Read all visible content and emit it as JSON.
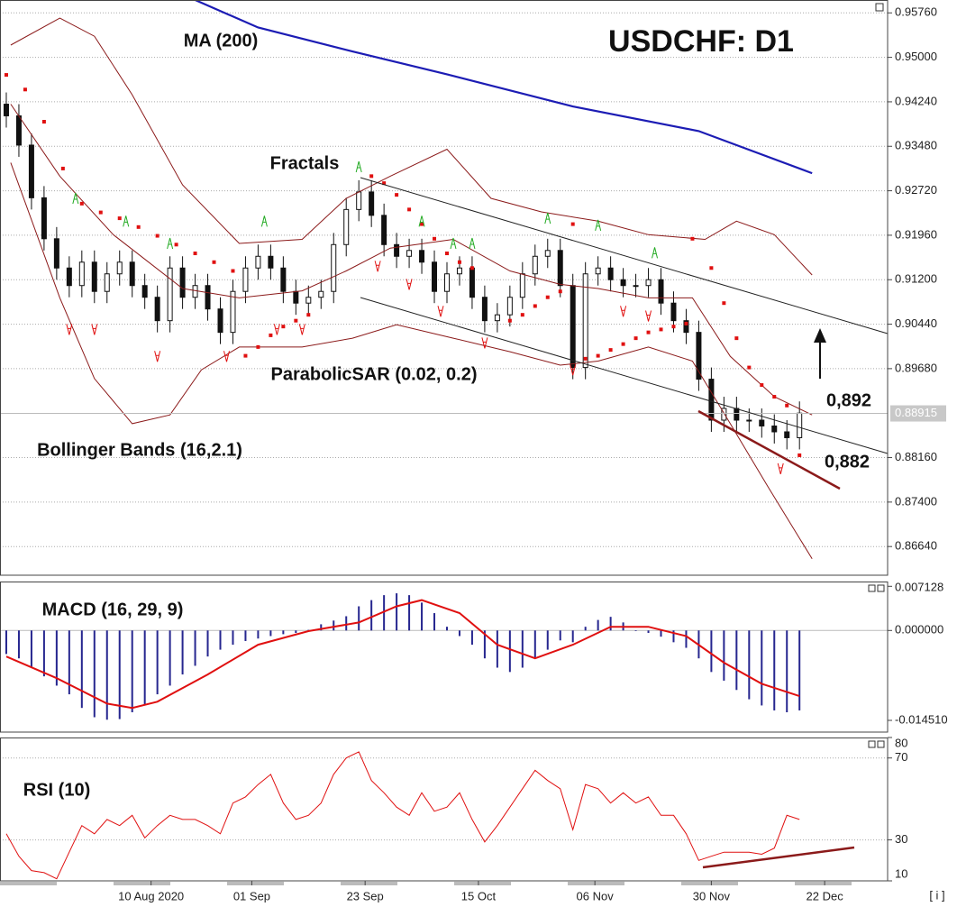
{
  "chart_data": [
    {
      "type": "candlestick",
      "title": "USDCHF: D1",
      "x": [
        0,
        2,
        4,
        6,
        8,
        10,
        12,
        14,
        16,
        18,
        20,
        22,
        24,
        26,
        28,
        30,
        32,
        34,
        36,
        38,
        40,
        42,
        44,
        46,
        48,
        50,
        52,
        54,
        56,
        58,
        60,
        62,
        64,
        66,
        68,
        70,
        72,
        74,
        76,
        78,
        80,
        82,
        84,
        86,
        88,
        90,
        92,
        94,
        96,
        98,
        100,
        102,
        104,
        106,
        108,
        110,
        112,
        114,
        116,
        118,
        120,
        122,
        124,
        126
      ],
      "open": [
        0.942,
        0.94,
        0.935,
        0.926,
        0.919,
        0.914,
        0.911,
        0.915,
        0.91,
        0.913,
        0.915,
        0.911,
        0.909,
        0.905,
        0.914,
        0.909,
        0.911,
        0.907,
        0.903,
        0.91,
        0.914,
        0.916,
        0.914,
        0.91,
        0.908,
        0.909,
        0.91,
        0.918,
        0.924,
        0.927,
        0.923,
        0.918,
        0.916,
        0.917,
        0.915,
        0.91,
        0.913,
        0.914,
        0.909,
        0.905,
        0.906,
        0.909,
        0.913,
        0.916,
        0.917,
        0.911,
        0.897,
        0.913,
        0.914,
        0.912,
        0.911,
        0.911,
        0.912,
        0.908,
        0.905,
        0.903,
        0.895,
        0.888,
        0.89,
        0.888,
        0.888,
        0.887,
        0.886,
        0.885
      ],
      "high": [
        0.944,
        0.942,
        0.937,
        0.928,
        0.921,
        0.916,
        0.917,
        0.917,
        0.915,
        0.917,
        0.917,
        0.913,
        0.911,
        0.916,
        0.916,
        0.913,
        0.913,
        0.909,
        0.912,
        0.916,
        0.918,
        0.918,
        0.916,
        0.912,
        0.911,
        0.912,
        0.92,
        0.926,
        0.929,
        0.929,
        0.925,
        0.92,
        0.919,
        0.919,
        0.917,
        0.915,
        0.916,
        0.916,
        0.911,
        0.908,
        0.911,
        0.915,
        0.918,
        0.919,
        0.919,
        0.913,
        0.915,
        0.916,
        0.916,
        0.914,
        0.913,
        0.914,
        0.914,
        0.91,
        0.907,
        0.905,
        0.897,
        0.892,
        0.892,
        0.89,
        0.89,
        0.889,
        0.888,
        0.8912
      ],
      "low": [
        0.938,
        0.933,
        0.924,
        0.917,
        0.912,
        0.909,
        0.909,
        0.908,
        0.908,
        0.911,
        0.909,
        0.907,
        0.903,
        0.903,
        0.907,
        0.907,
        0.905,
        0.901,
        0.901,
        0.908,
        0.912,
        0.912,
        0.908,
        0.906,
        0.906,
        0.907,
        0.908,
        0.916,
        0.922,
        0.921,
        0.916,
        0.914,
        0.914,
        0.913,
        0.908,
        0.908,
        0.911,
        0.907,
        0.903,
        0.903,
        0.904,
        0.907,
        0.911,
        0.914,
        0.909,
        0.895,
        0.895,
        0.911,
        0.91,
        0.909,
        0.909,
        0.909,
        0.906,
        0.903,
        0.901,
        0.893,
        0.886,
        0.886,
        0.886,
        0.886,
        0.885,
        0.884,
        0.883,
        0.883
      ],
      "close": [
        0.94,
        0.935,
        0.926,
        0.919,
        0.914,
        0.911,
        0.915,
        0.91,
        0.913,
        0.915,
        0.911,
        0.909,
        0.905,
        0.914,
        0.909,
        0.911,
        0.907,
        0.903,
        0.91,
        0.914,
        0.916,
        0.914,
        0.91,
        0.908,
        0.909,
        0.91,
        0.918,
        0.924,
        0.927,
        0.923,
        0.918,
        0.916,
        0.917,
        0.915,
        0.91,
        0.913,
        0.914,
        0.909,
        0.905,
        0.906,
        0.909,
        0.913,
        0.916,
        0.917,
        0.911,
        0.897,
        0.913,
        0.914,
        0.912,
        0.911,
        0.911,
        0.912,
        0.908,
        0.905,
        0.903,
        0.895,
        0.888,
        0.89,
        0.888,
        0.888,
        0.887,
        0.886,
        0.885,
        0.8892
      ],
      "series": [
        {
          "color": "#1c1cb4",
          "x": [
            30,
            40,
            55,
            70,
            90,
            110,
            128
          ],
          "values": [
            0.9598,
            0.9551,
            0.951,
            0.9471,
            0.9416,
            0.9374,
            0.9302
          ]
        },
        {
          "color": "#8b1a1a",
          "x": [
            0.7,
            8.5,
            14,
            20,
            28,
            37,
            47,
            54,
            61,
            70,
            77,
            85,
            94,
            102,
            111,
            116,
            122,
            128
          ],
          "values": [
            0.9521,
            0.9567,
            0.9536,
            0.9436,
            0.9282,
            0.9182,
            0.9189,
            0.9259,
            0.9297,
            0.9343,
            0.9259,
            0.9236,
            0.922,
            0.9197,
            0.9189,
            0.922,
            0.9197,
            0.9128
          ]
        },
        {
          "color": "#8b1a1a",
          "x": [
            0.7,
            8.5,
            17,
            28,
            37,
            47,
            54,
            61,
            71,
            80,
            88,
            94,
            102,
            109,
            115,
            122,
            128
          ],
          "values": [
            0.942,
            0.9297,
            0.9197,
            0.9105,
            0.9089,
            0.9101,
            0.9135,
            0.9174,
            0.9189,
            0.9135,
            0.9112,
            0.9105,
            0.9089,
            0.9089,
            0.8989,
            0.892,
            0.8889
          ]
        },
        {
          "color": "#8b1a1a",
          "x": [
            0.7,
            8.5,
            14,
            20,
            26,
            31,
            37,
            47,
            55,
            62,
            71,
            80,
            88,
            94,
            102,
            109,
            115,
            121,
            128
          ],
          "values": [
            0.932,
            0.9089,
            0.8951,
            0.8874,
            0.8889,
            0.8966,
            0.9005,
            0.9005,
            0.902,
            0.9043,
            0.902,
            0.8997,
            0.8974,
            0.8981,
            0.9005,
            0.8981,
            0.8874,
            0.8766,
            0.8643
          ]
        }
      ],
      "sar": {
        "color": "#e01010",
        "x": [
          0,
          3,
          6,
          9,
          12,
          15,
          18,
          21,
          24,
          27,
          30,
          33,
          36,
          38,
          40,
          42,
          44,
          46,
          48,
          58,
          60,
          62,
          64,
          66,
          68,
          70,
          72,
          74,
          80,
          82,
          84,
          86,
          88,
          90,
          92,
          94,
          96,
          98,
          100,
          102,
          104,
          106,
          108,
          109,
          112,
          114,
          116,
          118,
          120,
          122,
          124,
          126
        ],
        "values": [
          0.947,
          0.9445,
          0.939,
          0.931,
          0.925,
          0.9235,
          0.9225,
          0.921,
          0.9195,
          0.918,
          0.9165,
          0.915,
          0.9135,
          0.899,
          0.9005,
          0.9025,
          0.904,
          0.905,
          0.906,
          0.9297,
          0.9285,
          0.9265,
          0.924,
          0.9215,
          0.919,
          0.9165,
          0.915,
          0.914,
          0.905,
          0.906,
          0.9075,
          0.909,
          0.91,
          0.9215,
          0.8985,
          0.899,
          0.9,
          0.901,
          0.902,
          0.903,
          0.9035,
          0.904,
          0.9045,
          0.919,
          0.914,
          0.908,
          0.902,
          0.897,
          0.894,
          0.892,
          0.8905,
          0.882
        ]
      },
      "fractals_up": {
        "color": "#22aa22",
        "x": [
          11,
          19,
          26,
          41,
          56,
          66,
          71,
          74,
          86,
          94,
          103
        ],
        "values": [
          0.9259,
          0.922,
          0.9182,
          0.922,
          0.9313,
          0.922,
          0.9182,
          0.9182,
          0.9225,
          0.9213,
          0.9166
        ]
      },
      "fractals_down": {
        "color": "#e01010",
        "x": [
          10,
          14,
          24,
          35,
          43,
          47,
          59,
          64,
          69,
          76,
          90,
          98,
          102,
          123
        ],
        "values": [
          0.9035,
          0.9035,
          0.8989,
          0.8989,
          0.9035,
          0.9035,
          0.9143,
          0.9112,
          0.9066,
          0.9012,
          0.8966,
          0.9066,
          0.9058,
          0.8797
        ]
      },
      "last_price": 0.88915,
      "annotations": [
        "MA (200)",
        "Fractals",
        "ParabolicSAR (0.02, 0.2)",
        "Bollinger Bands (16,2.1)",
        "0,892",
        "0,882"
      ],
      "xlim": [
        -1,
        140
      ],
      "ylim": [
        0.8615,
        0.9598
      ],
      "xticks": [
        {
          "value": 23,
          "label": "10 Aug 2020"
        },
        {
          "value": 39,
          "label": "01 Sep"
        },
        {
          "value": 57,
          "label": "23 Sep"
        },
        {
          "value": 75,
          "label": "15 Oct"
        },
        {
          "value": 93.5,
          "label": "06 Nov"
        },
        {
          "value": 112,
          "label": "30 Nov"
        },
        {
          "value": 130,
          "label": "22 Dec"
        }
      ],
      "yticks": [
        {
          "value": 0.9576,
          "label": "0.95760"
        },
        {
          "value": 0.95,
          "label": "0.95000"
        },
        {
          "value": 0.9424,
          "label": "0.94240"
        },
        {
          "value": 0.9348,
          "label": "0.93480"
        },
        {
          "value": 0.9272,
          "label": "0.92720"
        },
        {
          "value": 0.9196,
          "label": "0.91960"
        },
        {
          "value": 0.912,
          "label": "0.91200"
        },
        {
          "value": 0.9044,
          "label": "0.90440"
        },
        {
          "value": 0.8968,
          "label": "0.89680"
        },
        {
          "value": 0.8816,
          "label": "0.88160"
        },
        {
          "value": 0.874,
          "label": "0.87400"
        },
        {
          "value": 0.8664,
          "label": "0.86640"
        }
      ],
      "grid": true
    },
    {
      "type": "bar",
      "title": "MACD (16, 29, 9)",
      "color": "#26268f",
      "x": [
        0,
        2,
        4,
        6,
        8,
        10,
        12,
        14,
        16,
        18,
        20,
        22,
        24,
        26,
        28,
        30,
        32,
        34,
        36,
        38,
        40,
        42,
        44,
        46,
        48,
        50,
        52,
        54,
        56,
        58,
        60,
        62,
        64,
        66,
        68,
        70,
        72,
        74,
        76,
        78,
        80,
        82,
        84,
        86,
        88,
        90,
        92,
        94,
        96,
        98,
        100,
        102,
        104,
        106,
        108,
        110,
        112,
        114,
        116,
        118,
        120,
        122,
        124,
        126
      ],
      "values": [
        -0.0038,
        -0.0045,
        -0.006,
        -0.0074,
        -0.0089,
        -0.0103,
        -0.0125,
        -0.014,
        -0.0144,
        -0.0143,
        -0.0132,
        -0.0121,
        -0.0103,
        -0.0089,
        -0.0071,
        -0.0057,
        -0.0042,
        -0.0031,
        -0.0023,
        -0.0017,
        -0.0013,
        -0.0009,
        -0.0006,
        -0.0004,
        0.0001,
        0.001,
        0.0016,
        0.0023,
        0.0039,
        0.0049,
        0.0057,
        0.006,
        0.0057,
        0.0045,
        0.0028,
        0.0006,
        -0.0009,
        -0.0023,
        -0.0045,
        -0.006,
        -0.0067,
        -0.006,
        -0.0045,
        -0.0031,
        -0.0016,
        -0.0019,
        0.0006,
        0.0017,
        0.0022,
        0.0013,
        -0.0001,
        -0.0004,
        -0.001,
        -0.0019,
        -0.0028,
        -0.0045,
        -0.0067,
        -0.0081,
        -0.0096,
        -0.0111,
        -0.0121,
        -0.0129,
        -0.0132,
        -0.0129
      ],
      "signal": {
        "color": "#e01010",
        "x": [
          0,
          8,
          16,
          20,
          24,
          32,
          40,
          48,
          56,
          62,
          66,
          72,
          78,
          84,
          90,
          96,
          102,
          108,
          114,
          120,
          126
        ],
        "values": [
          -0.0042,
          -0.0077,
          -0.0118,
          -0.0125,
          -0.0115,
          -0.0071,
          -0.0023,
          -0.0001,
          0.0013,
          0.0039,
          0.0049,
          0.0028,
          -0.0023,
          -0.0045,
          -0.0023,
          0.0006,
          0.0006,
          -0.0009,
          -0.0052,
          -0.0086,
          -0.0106
        ]
      },
      "xlim": [
        -1,
        140
      ],
      "ylim": [
        -0.0164,
        0.0079
      ],
      "yticks": [
        {
          "value": 0.007128,
          "label": "0.007128"
        },
        {
          "value": 0,
          "label": "0.000000"
        },
        {
          "value": -0.01451,
          "label": "-0.014510"
        }
      ],
      "grid": false
    },
    {
      "type": "line",
      "title": "RSI (10)",
      "color": "#e01010",
      "x": [
        0,
        2,
        4,
        6,
        8,
        10,
        12,
        14,
        16,
        18,
        20,
        22,
        24,
        26,
        28,
        30,
        32,
        34,
        36,
        38,
        40,
        42,
        44,
        46,
        48,
        50,
        52,
        54,
        56,
        58,
        60,
        62,
        64,
        66,
        68,
        70,
        72,
        74,
        76,
        78,
        80,
        82,
        84,
        86,
        88,
        90,
        92,
        94,
        96,
        98,
        100,
        102,
        104,
        106,
        108,
        110,
        112,
        114,
        116,
        118,
        120,
        122,
        124,
        126
      ],
      "values": [
        33,
        22,
        15,
        14,
        11,
        24,
        37,
        33,
        40,
        37,
        42,
        31,
        37,
        42,
        40,
        40,
        37,
        33,
        48,
        51,
        57,
        62,
        48,
        40,
        42,
        48,
        62,
        70,
        73,
        59,
        53,
        46,
        42,
        53,
        44,
        46,
        53,
        40,
        29,
        37,
        46,
        55,
        64,
        59,
        55,
        35,
        57,
        55,
        48,
        53,
        48,
        51,
        42,
        42,
        33,
        20,
        22,
        24,
        24,
        24,
        23,
        26,
        42,
        40
      ],
      "xlim": [
        -1,
        140
      ],
      "ylim": [
        10,
        80
      ],
      "yticks": [
        80,
        70,
        30,
        10
      ],
      "grid": true
    },
    {
      "footer": "[ i ]"
    }
  ]
}
